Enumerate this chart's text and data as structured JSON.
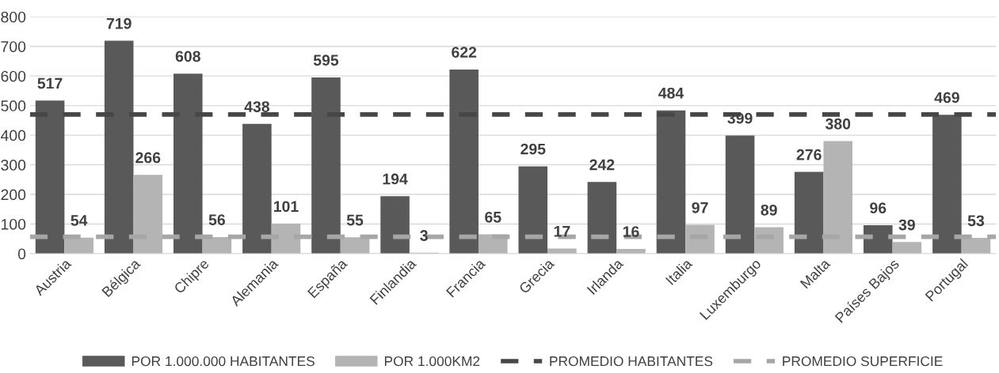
{
  "chart_data": {
    "type": "bar",
    "categories": [
      "Austria",
      "Bélgica",
      "Chipre",
      "Alemania",
      "España",
      "Finlandia",
      "Francia",
      "Grecia",
      "Irlanda",
      "Italia",
      "Luxemburgo",
      "Malta",
      "Países Bajos",
      "Portugal"
    ],
    "series": [
      {
        "name": "POR 1.000.000 HABITANTES",
        "color": "#595959",
        "values": [
          517,
          719,
          608,
          438,
          595,
          194,
          622,
          295,
          242,
          484,
          399,
          276,
          96,
          469
        ]
      },
      {
        "name": "POR 1.000KM2",
        "color": "#b4b4b4",
        "values": [
          54,
          266,
          56,
          101,
          55,
          3,
          65,
          17,
          16,
          97,
          89,
          380,
          39,
          53
        ]
      }
    ],
    "ref_lines": [
      {
        "axis": "y",
        "value": 470,
        "label": "PROMEDIO HABITANTES",
        "color": "#474747",
        "line_style": "dashed"
      },
      {
        "axis": "y",
        "value": 57,
        "label": "PROMEDIO SUPERFICIE",
        "color": "#a6a6a6",
        "line_style": "dashed"
      }
    ],
    "ylim": [
      0,
      800
    ],
    "yticks": [
      0,
      100,
      200,
      300,
      400,
      500,
      600,
      700,
      800
    ],
    "grid": "y",
    "legend": "bottom",
    "data_labels": true
  }
}
